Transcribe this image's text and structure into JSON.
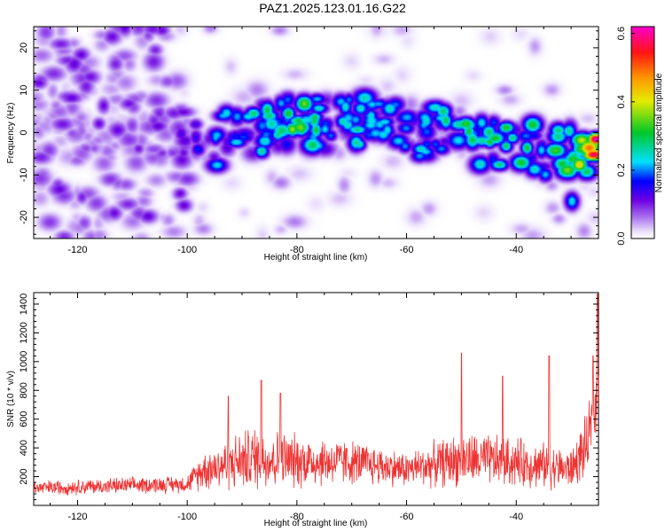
{
  "figure_title": "PAZ1.2025.123.01.16.G22",
  "chart_data": [
    {
      "type": "heatmap",
      "xlabel": "Height of straight line (km)",
      "ylabel": "Frequency (Hz)",
      "xlim": [
        -128,
        -25
      ],
      "ylim": [
        -25,
        25
      ],
      "xticks": [
        -120,
        -100,
        -80,
        -60,
        -40
      ],
      "yticks": [
        -20,
        -10,
        0,
        10,
        20
      ],
      "colorbar": {
        "label": "Normalized spectral amplitude",
        "range": [
          0.0,
          0.62
        ],
        "ticks": [
          0.0,
          0.2,
          0.4,
          0.6
        ],
        "colormap": "rainbow (white → violet → blue → cyan → green → yellow → orange → red → magenta)"
      },
      "ridge": [
        {
          "x": -110,
          "y": 0,
          "v": 0.05
        },
        {
          "x": -100,
          "y": -1,
          "v": 0.12
        },
        {
          "x": -95,
          "y": -2,
          "v": 0.22
        },
        {
          "x": -85,
          "y": 2,
          "v": 0.26
        },
        {
          "x": -80,
          "y": 3,
          "v": 0.32
        },
        {
          "x": -75,
          "y": 2,
          "v": 0.24
        },
        {
          "x": -65,
          "y": 3,
          "v": 0.22
        },
        {
          "x": -60,
          "y": 0,
          "v": 0.2
        },
        {
          "x": -55,
          "y": 1,
          "v": 0.26
        },
        {
          "x": -50,
          "y": 0,
          "v": 0.3
        },
        {
          "x": -45,
          "y": -2,
          "v": 0.28
        },
        {
          "x": -40,
          "y": -3,
          "v": 0.28
        },
        {
          "x": -35,
          "y": -4,
          "v": 0.26
        },
        {
          "x": -30,
          "y": -4,
          "v": 0.32
        },
        {
          "x": -28,
          "y": -5,
          "v": 0.4
        },
        {
          "x": -26,
          "y": -5,
          "v": 0.6
        }
      ],
      "blobs": [
        {
          "x": -81,
          "y": 1,
          "v": 0.38
        },
        {
          "x": -77,
          "y": 3,
          "v": 0.3
        },
        {
          "x": -89,
          "y": 4,
          "v": 0.24
        },
        {
          "x": -95,
          "y": -1,
          "v": 0.22
        },
        {
          "x": -74,
          "y": -0.5,
          "v": 0.2
        },
        {
          "x": -57,
          "y": 2,
          "v": 0.22
        },
        {
          "x": -53,
          "y": 3,
          "v": 0.3
        },
        {
          "x": -49,
          "y": 2,
          "v": 0.28
        },
        {
          "x": -45,
          "y": -2,
          "v": 0.32
        },
        {
          "x": -42,
          "y": -3,
          "v": 0.3
        },
        {
          "x": -33,
          "y": -4,
          "v": 0.34
        },
        {
          "x": -26,
          "y": -5,
          "v": 0.6
        },
        {
          "x": -30,
          "y": -16,
          "v": 0.24
        }
      ]
    },
    {
      "type": "line",
      "xlabel": "Height of straight line (km)",
      "ylabel": "SNR (10 * v/v)",
      "xlim": [
        -128,
        -25
      ],
      "ylim": [
        0,
        1480
      ],
      "xticks": [
        -120,
        -100,
        -80,
        -60,
        -40
      ],
      "yticks": [
        200,
        400,
        600,
        800,
        1000,
        1200,
        1400
      ],
      "series": [
        {
          "color": "#ee3333",
          "envelope": [
            {
              "x": -128,
              "mean": 120,
              "amp": 60
            },
            {
              "x": -100,
              "mean": 150,
              "amp": 70
            },
            {
              "x": -97,
              "mean": 250,
              "amp": 160
            },
            {
              "x": -88,
              "mean": 330,
              "amp": 260
            },
            {
              "x": -80,
              "mean": 310,
              "amp": 220
            },
            {
              "x": -70,
              "mean": 300,
              "amp": 180
            },
            {
              "x": -60,
              "mean": 250,
              "amp": 140
            },
            {
              "x": -50,
              "mean": 320,
              "amp": 220
            },
            {
              "x": -40,
              "mean": 300,
              "amp": 200
            },
            {
              "x": -30,
              "mean": 250,
              "amp": 160
            },
            {
              "x": -27,
              "mean": 420,
              "amp": 260
            },
            {
              "x": -25,
              "mean": 800,
              "amp": 300
            }
          ],
          "peaks": [
            {
              "x": -92.5,
              "y": 760
            },
            {
              "x": -86.5,
              "y": 870
            },
            {
              "x": -83,
              "y": 780
            },
            {
              "x": -50,
              "y": 1060
            },
            {
              "x": -42.5,
              "y": 900
            },
            {
              "x": -34,
              "y": 1040
            },
            {
              "x": -26,
              "y": 1040
            },
            {
              "x": -25.2,
              "y": 1470
            }
          ]
        }
      ]
    }
  ]
}
